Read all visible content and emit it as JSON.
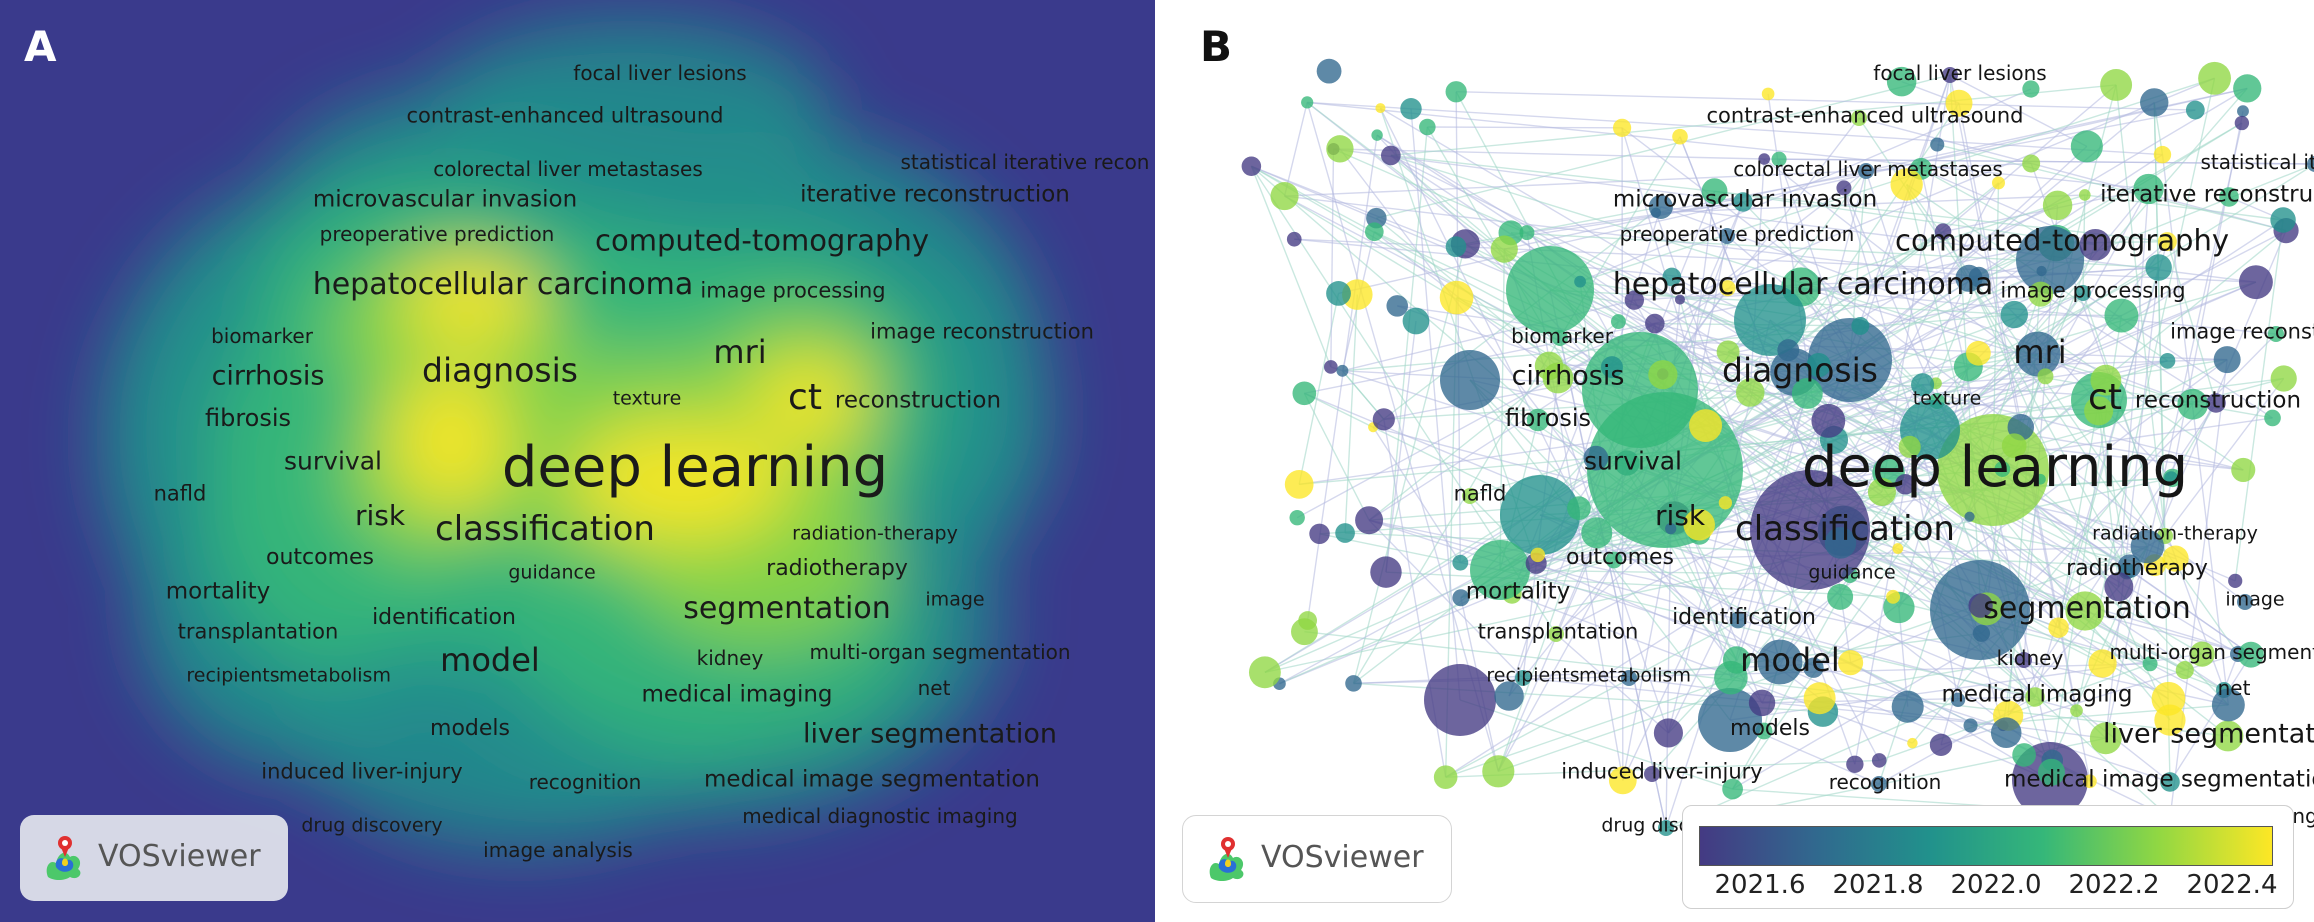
{
  "panel_a": {
    "label": "A",
    "logo_text": "VOSviewer"
  },
  "panel_b": {
    "label": "B",
    "logo_text": "VOSviewer",
    "color_scale": {
      "ticks": [
        "2021.6",
        "2021.8",
        "2022.0",
        "2022.2",
        "2022.4"
      ]
    }
  },
  "colors": {
    "viridis": [
      "#443a83",
      "#31688e",
      "#21918c",
      "#35b779",
      "#90d743",
      "#fde725"
    ],
    "density_background": "#3a3a8c"
  },
  "terms": [
    {
      "text": "focal liver lesions",
      "size": 20
    },
    {
      "text": "contrast-enhanced ultrasound",
      "size": 21
    },
    {
      "text": "colorectal liver metastases",
      "size": 20
    },
    {
      "text": "statistical iterative recon",
      "size": 20
    },
    {
      "text": "iterative reconstruction",
      "size": 23
    },
    {
      "text": "microvascular invasion",
      "size": 23
    },
    {
      "text": "preoperative prediction",
      "size": 20
    },
    {
      "text": "computed-tomography",
      "size": 29
    },
    {
      "text": "hepatocellular carcinoma",
      "size": 30
    },
    {
      "text": "image processing",
      "size": 21
    },
    {
      "text": "image reconstruction",
      "size": 21
    },
    {
      "text": "biomarker",
      "size": 20
    },
    {
      "text": "cirrhosis",
      "size": 27
    },
    {
      "text": "diagnosis",
      "size": 33
    },
    {
      "text": "mri",
      "size": 32
    },
    {
      "text": "texture",
      "size": 19
    },
    {
      "text": "ct",
      "size": 36
    },
    {
      "text": "reconstruction",
      "size": 23
    },
    {
      "text": "fibrosis",
      "size": 24
    },
    {
      "text": "survival",
      "size": 25
    },
    {
      "text": "deep learning",
      "size": 56
    },
    {
      "text": "nafld",
      "size": 21
    },
    {
      "text": "risk",
      "size": 28
    },
    {
      "text": "classification",
      "size": 34
    },
    {
      "text": "radiation-therapy",
      "size": 19
    },
    {
      "text": "outcomes",
      "size": 22
    },
    {
      "text": "guidance",
      "size": 19
    },
    {
      "text": "radiotherapy",
      "size": 22
    },
    {
      "text": "mortality",
      "size": 23
    },
    {
      "text": "segmentation",
      "size": 30
    },
    {
      "text": "image",
      "size": 19
    },
    {
      "text": "identification",
      "size": 22
    },
    {
      "text": "transplantation",
      "size": 21
    },
    {
      "text": "model",
      "size": 32
    },
    {
      "text": "kidney",
      "size": 20
    },
    {
      "text": "multi-organ segmentation",
      "size": 20
    },
    {
      "text": "recipients",
      "size": 19
    },
    {
      "text": "metabolism",
      "size": 19
    },
    {
      "text": "medical imaging",
      "size": 23
    },
    {
      "text": "net",
      "size": 20
    },
    {
      "text": "models",
      "size": 22
    },
    {
      "text": "liver segmentation",
      "size": 27
    },
    {
      "text": "induced liver-injury",
      "size": 21
    },
    {
      "text": "recognition",
      "size": 20
    },
    {
      "text": "medical image segmentation",
      "size": 23
    },
    {
      "text": "medical diagnostic imaging",
      "size": 20
    },
    {
      "text": "drug discovery",
      "size": 19
    },
    {
      "text": "image analysis",
      "size": 20
    }
  ]
}
